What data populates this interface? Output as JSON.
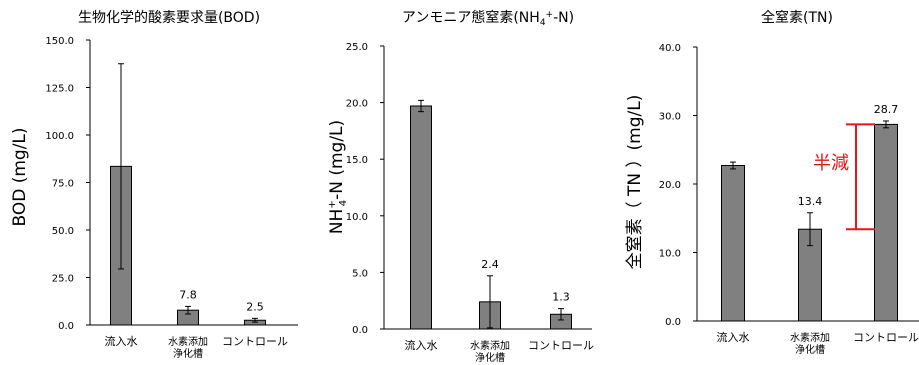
{
  "colors": {
    "bar": "#808080",
    "bar_stroke": "#000000",
    "axis": "#000000",
    "annotation": "#e8141c"
  },
  "chart_data": [
    {
      "type": "bar",
      "title": "生物化学的酸素要求量(BOD)",
      "ylabel": "BOD (mg/L)",
      "ylim": [
        0,
        150
      ],
      "y_ticks": [
        "0.0",
        "25.0",
        "50.0",
        "75.0",
        "100.0",
        "125.0",
        "150.0"
      ],
      "categories": [
        [
          "流入水"
        ],
        [
          "水素添加",
          "浄化槽"
        ],
        [
          "コントロール"
        ]
      ],
      "values": [
        83.5,
        7.8,
        2.5
      ],
      "errors": [
        54,
        2,
        1
      ],
      "data_labels": [
        "",
        "7.8",
        "2.5"
      ]
    },
    {
      "type": "bar",
      "title_parts": {
        "main": "アンモニア態窒素(NH",
        "sub": "4",
        "sup": "+",
        "tail": "-N)"
      },
      "ylabel_parts": {
        "a": "NH",
        "sup": "+",
        "sub": "4",
        "b": "-N (mg/L)"
      },
      "ylim": [
        0,
        25
      ],
      "y_ticks": [
        "0.0",
        "5.0",
        "10.0",
        "15.0",
        "20.0",
        "25.0"
      ],
      "categories": [
        [
          "流入水"
        ],
        [
          "水素添加",
          "浄化槽"
        ],
        [
          "コントロール"
        ]
      ],
      "values": [
        19.7,
        2.4,
        1.3
      ],
      "errors": [
        0.5,
        2.3,
        0.5
      ],
      "data_labels": [
        "",
        "2.4",
        "1.3"
      ]
    },
    {
      "type": "bar",
      "title": "全窒素(TN)",
      "ylabel": "全窒素（ TN ）(mg/L)",
      "ylim": [
        0,
        40
      ],
      "y_ticks": [
        "0.0",
        "10.0",
        "20.0",
        "30.0",
        "40.0"
      ],
      "categories": [
        [
          "流入水"
        ],
        [
          "水素添加",
          "浄化槽"
        ],
        [
          "コントロール"
        ]
      ],
      "values": [
        22.7,
        13.4,
        28.7
      ],
      "errors": [
        0.5,
        2.4,
        0.5
      ],
      "data_labels": [
        "",
        "13.4",
        "28.7"
      ],
      "annotation": {
        "text": "半減"
      }
    }
  ]
}
